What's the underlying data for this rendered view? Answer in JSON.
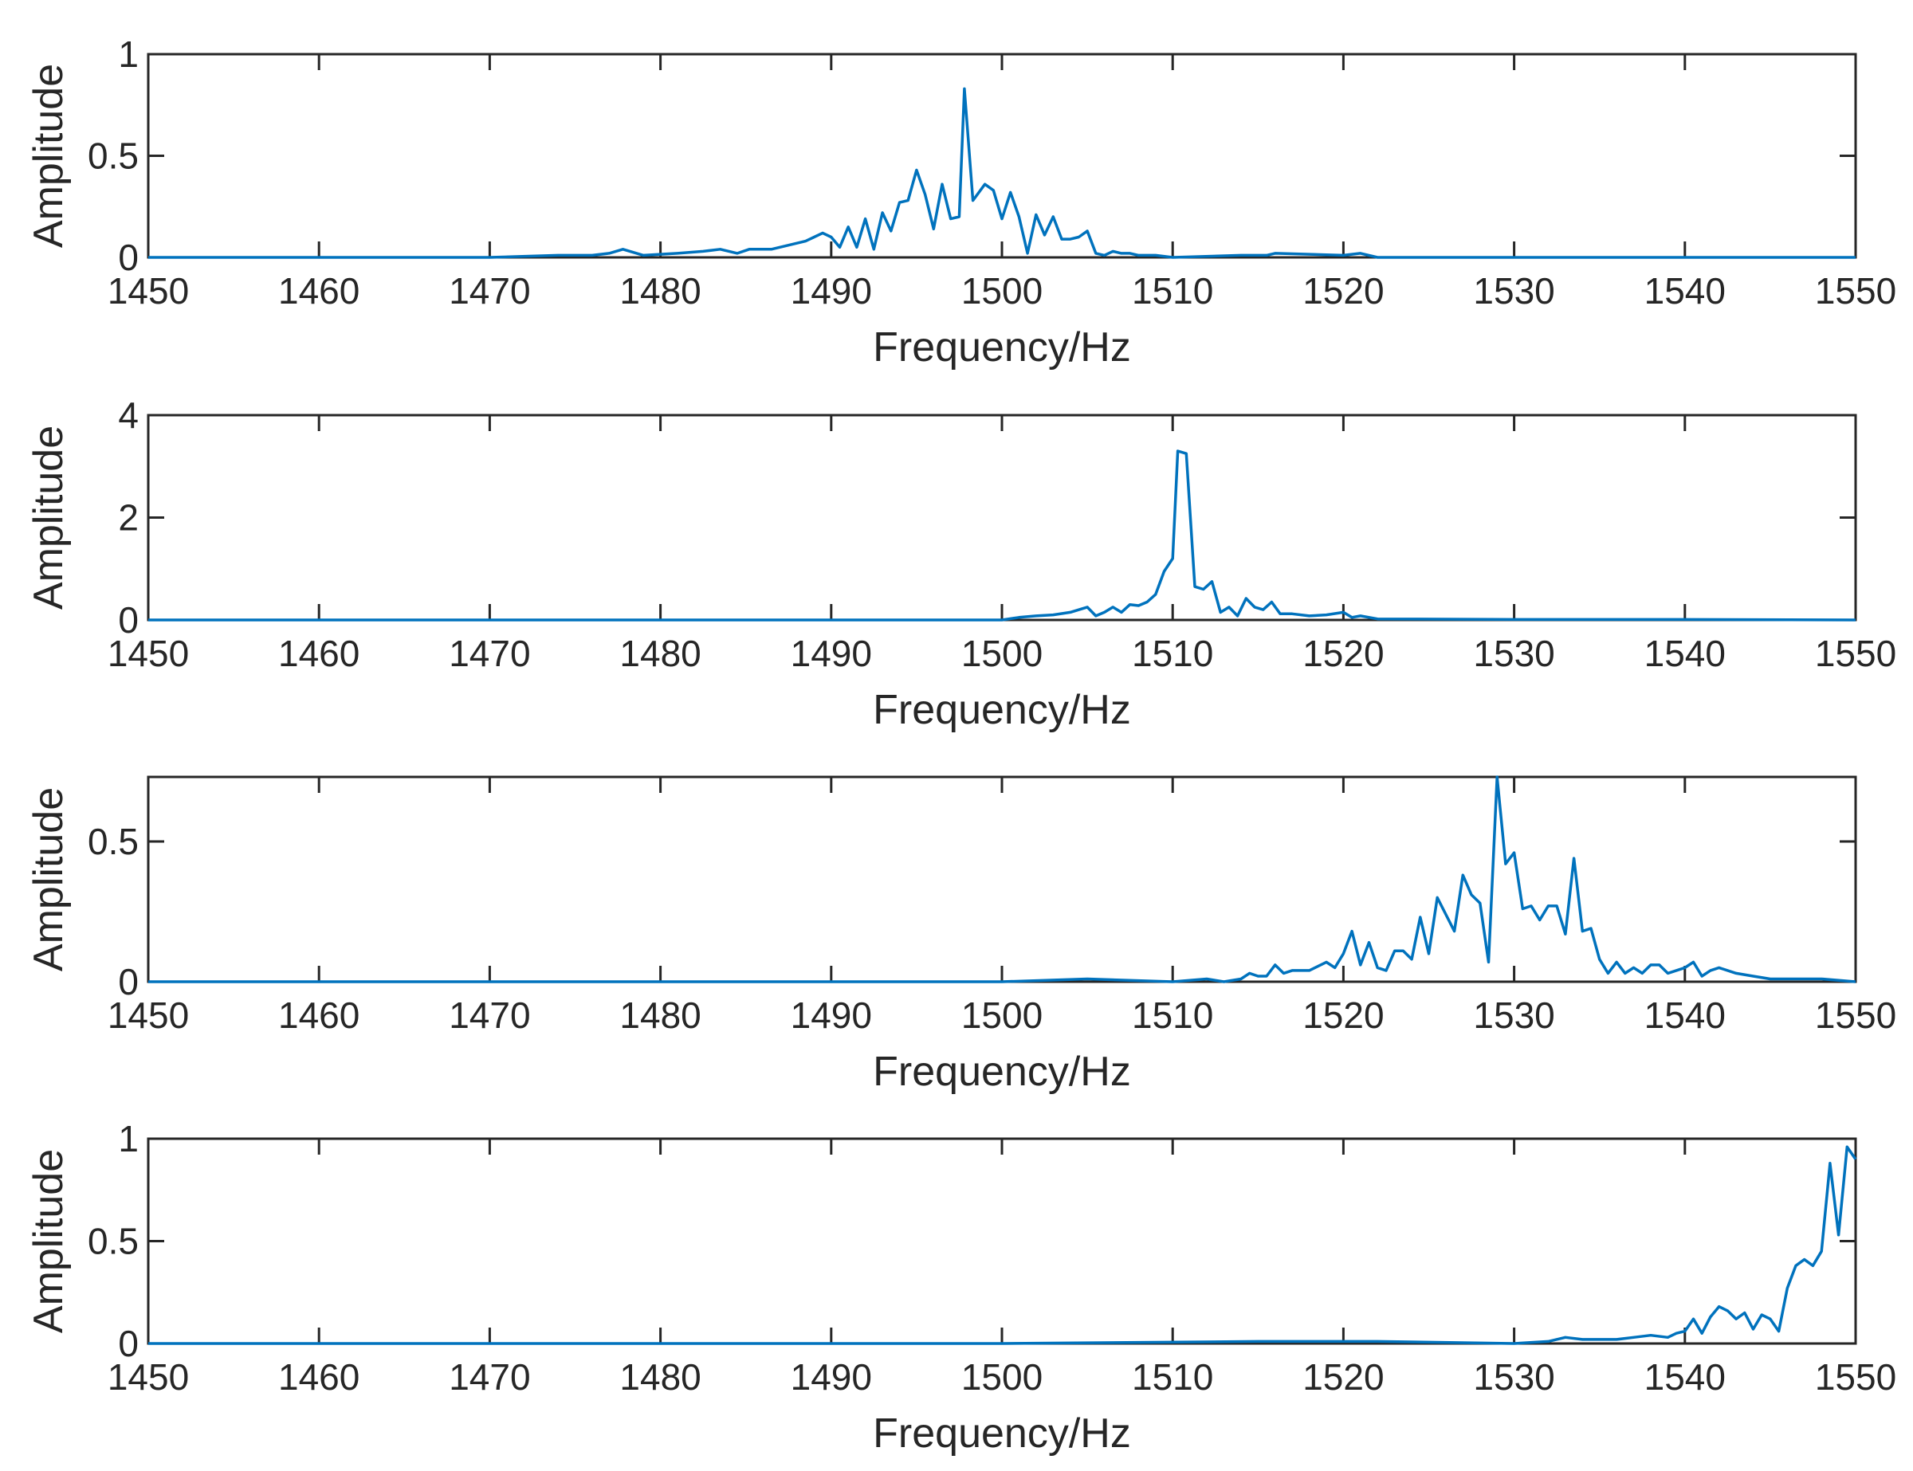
{
  "colors": {
    "series": "#0072BD",
    "axes": "#262626"
  },
  "chart_data": [
    {
      "type": "line",
      "xlabel": "Frequency/Hz",
      "ylabel": "Amplitude",
      "xlim": [
        1450,
        1550
      ],
      "ylim": [
        0,
        1
      ],
      "xticks": [
        1450,
        1460,
        1470,
        1480,
        1490,
        1500,
        1510,
        1520,
        1530,
        1540,
        1550
      ],
      "yticks": [
        0,
        0.5,
        1
      ],
      "ytick_labels": [
        "0",
        "0.5",
        "1"
      ],
      "x": [
        1450,
        1460,
        1470,
        1474,
        1476,
        1477,
        1477.8,
        1479,
        1481,
        1482.5,
        1483.5,
        1484.5,
        1485.2,
        1486.5,
        1487.5,
        1488.5,
        1489,
        1489.5,
        1490,
        1490.5,
        1491,
        1491.5,
        1492,
        1492.5,
        1493,
        1493.5,
        1494,
        1494.5,
        1495,
        1495.5,
        1496,
        1496.5,
        1497,
        1497.5,
        1497.8,
        1498.3,
        1499,
        1499.5,
        1500,
        1500.5,
        1501,
        1501.5,
        1502,
        1502.5,
        1503,
        1503.5,
        1504,
        1504.5,
        1505,
        1505.5,
        1506,
        1506.5,
        1507,
        1507.5,
        1508,
        1509,
        1510,
        1514,
        1515.5,
        1516,
        1520,
        1521,
        1522,
        1530,
        1540,
        1550
      ],
      "y": [
        0,
        0,
        0,
        0.01,
        0.01,
        0.02,
        0.04,
        0.01,
        0.02,
        0.03,
        0.04,
        0.02,
        0.04,
        0.04,
        0.06,
        0.08,
        0.1,
        0.12,
        0.1,
        0.05,
        0.15,
        0.05,
        0.19,
        0.04,
        0.22,
        0.13,
        0.27,
        0.28,
        0.43,
        0.31,
        0.14,
        0.36,
        0.19,
        0.2,
        0.83,
        0.28,
        0.36,
        0.33,
        0.19,
        0.32,
        0.2,
        0.02,
        0.21,
        0.11,
        0.2,
        0.09,
        0.09,
        0.1,
        0.13,
        0.02,
        0.01,
        0.03,
        0.02,
        0.02,
        0.01,
        0.01,
        0,
        0.01,
        0.01,
        0.02,
        0.01,
        0.02,
        0,
        0,
        0,
        0
      ]
    },
    {
      "type": "line",
      "xlabel": "Frequency/Hz",
      "ylabel": "Amplitude",
      "xlim": [
        1450,
        1550
      ],
      "ylim": [
        0,
        4
      ],
      "xticks": [
        1450,
        1460,
        1470,
        1480,
        1490,
        1500,
        1510,
        1520,
        1530,
        1540,
        1550
      ],
      "yticks": [
        0,
        2,
        4
      ],
      "ytick_labels": [
        "0",
        "2",
        "4"
      ],
      "x": [
        1450,
        1490,
        1500,
        1501,
        1502,
        1503,
        1504,
        1505,
        1505.5,
        1506,
        1506.5,
        1507,
        1507.5,
        1508,
        1508.5,
        1509,
        1509.5,
        1510,
        1510.3,
        1510.8,
        1511.3,
        1511.8,
        1512.3,
        1512.8,
        1513.3,
        1513.8,
        1514.3,
        1514.8,
        1515.3,
        1515.8,
        1516.3,
        1517,
        1518,
        1519,
        1520,
        1520.5,
        1521,
        1522,
        1530,
        1540,
        1550
      ],
      "y": [
        0,
        0,
        0,
        0.05,
        0.08,
        0.1,
        0.15,
        0.25,
        0.08,
        0.15,
        0.25,
        0.15,
        0.3,
        0.28,
        0.35,
        0.5,
        0.95,
        1.2,
        3.3,
        3.25,
        0.65,
        0.6,
        0.75,
        0.15,
        0.25,
        0.08,
        0.42,
        0.25,
        0.2,
        0.35,
        0.12,
        0.12,
        0.08,
        0.1,
        0.15,
        0.05,
        0.08,
        0.02,
        0.01,
        0.01,
        0
      ]
    },
    {
      "type": "line",
      "xlabel": "Frequency/Hz",
      "ylabel": "Amplitude",
      "xlim": [
        1450,
        1550
      ],
      "ylim": [
        0,
        0.73
      ],
      "xticks": [
        1450,
        1460,
        1470,
        1480,
        1490,
        1500,
        1510,
        1520,
        1530,
        1540,
        1550
      ],
      "yticks": [
        0,
        0.5
      ],
      "ytick_labels": [
        "0",
        "0.5"
      ],
      "x": [
        1450,
        1480,
        1500,
        1505,
        1510,
        1512,
        1513,
        1514,
        1514.5,
        1515,
        1515.5,
        1516,
        1516.5,
        1517,
        1518,
        1519,
        1519.5,
        1520,
        1520.5,
        1521,
        1521.5,
        1522,
        1522.5,
        1523,
        1523.5,
        1524,
        1524.5,
        1525,
        1525.5,
        1526,
        1526.5,
        1527,
        1527.5,
        1528,
        1528.5,
        1529,
        1529.5,
        1530,
        1530.5,
        1531,
        1531.5,
        1532,
        1532.5,
        1533,
        1533.5,
        1534,
        1534.5,
        1535,
        1535.5,
        1536,
        1536.5,
        1537,
        1537.5,
        1538,
        1538.5,
        1539,
        1539.5,
        1540,
        1540.5,
        1541,
        1541.5,
        1542,
        1543,
        1544,
        1545,
        1546,
        1548,
        1550
      ],
      "y": [
        0,
        0,
        0,
        0.01,
        0,
        0.01,
        0,
        0.01,
        0.03,
        0.02,
        0.02,
        0.06,
        0.03,
        0.04,
        0.04,
        0.07,
        0.05,
        0.1,
        0.18,
        0.06,
        0.14,
        0.05,
        0.04,
        0.11,
        0.11,
        0.08,
        0.23,
        0.1,
        0.3,
        0.24,
        0.18,
        0.38,
        0.31,
        0.28,
        0.07,
        0.73,
        0.42,
        0.46,
        0.26,
        0.27,
        0.22,
        0.27,
        0.27,
        0.17,
        0.44,
        0.18,
        0.19,
        0.08,
        0.03,
        0.07,
        0.03,
        0.05,
        0.03,
        0.06,
        0.06,
        0.03,
        0.04,
        0.05,
        0.07,
        0.02,
        0.04,
        0.05,
        0.03,
        0.02,
        0.01,
        0.01,
        0.01,
        0
      ]
    },
    {
      "type": "line",
      "xlabel": "Frequency/Hz",
      "ylabel": "Amplitude",
      "xlim": [
        1450,
        1550
      ],
      "ylim": [
        0,
        1
      ],
      "xticks": [
        1450,
        1460,
        1470,
        1480,
        1490,
        1500,
        1510,
        1520,
        1530,
        1540,
        1550
      ],
      "yticks": [
        0,
        0.5,
        1
      ],
      "ytick_labels": [
        "0",
        "0.5",
        "1"
      ],
      "x": [
        1450,
        1500,
        1515,
        1520,
        1522,
        1530,
        1532,
        1533,
        1534,
        1535,
        1536,
        1537,
        1538,
        1539,
        1539.5,
        1540,
        1540.5,
        1541,
        1541.5,
        1542,
        1542.5,
        1543,
        1543.5,
        1544,
        1544.5,
        1545,
        1545.5,
        1546,
        1546.5,
        1547,
        1547.5,
        1548,
        1548.5,
        1549,
        1549.5,
        1550
      ],
      "y": [
        0,
        0,
        0.01,
        0.01,
        0.01,
        0,
        0.01,
        0.03,
        0.02,
        0.02,
        0.02,
        0.03,
        0.04,
        0.03,
        0.05,
        0.06,
        0.12,
        0.05,
        0.13,
        0.18,
        0.16,
        0.12,
        0.15,
        0.07,
        0.14,
        0.12,
        0.06,
        0.27,
        0.38,
        0.41,
        0.38,
        0.45,
        0.88,
        0.53,
        0.96,
        0.9
      ]
    }
  ]
}
